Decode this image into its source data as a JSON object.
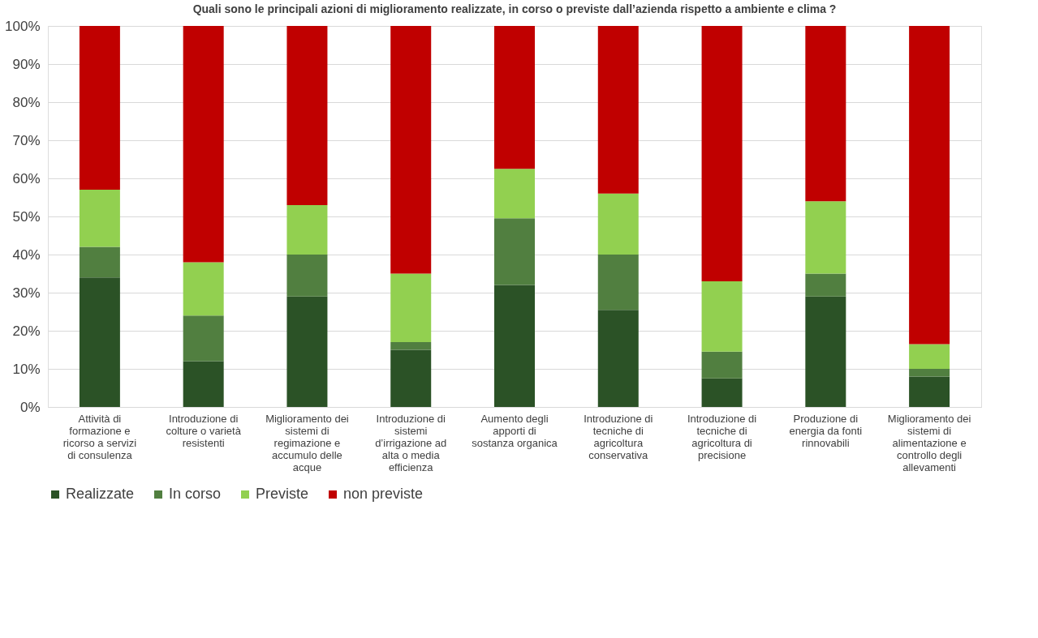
{
  "chart_data": {
    "type": "bar",
    "stacked": true,
    "title": "Quali sono le principali azioni di miglioramento realizzate, in corso o previste dall’azienda rispetto a  ambiente e clima ?",
    "categories": [
      "Attività di formazione e ricorso a servizi di consulenza",
      "Introduzione di colture o varietà resistenti",
      "Miglioramento dei sistemi di regimazione  e accumulo delle acque",
      "Introduzione di sistemi d’irrigazione ad alta o media efficienza",
      "Aumento degli apporti di sostanza organica",
      "Introduzione di tecniche di agricoltura conservativa",
      "Introduzione di tecniche di agricoltura di precisione",
      "Produzione di energia da fonti rinnovabili",
      "Miglioramento dei sistemi di alimentazione e controllo degli allevamenti"
    ],
    "series": [
      {
        "name": "Realizzate",
        "color": "#2b5226",
        "values": [
          34,
          12,
          29,
          15,
          32,
          25.5,
          7.5,
          29,
          8
        ]
      },
      {
        "name": "In corso",
        "color": "#517f40",
        "values": [
          8,
          12,
          11,
          2,
          17.5,
          14.5,
          7,
          6,
          2
        ]
      },
      {
        "name": "Previste",
        "color": "#92d050",
        "values": [
          15,
          14,
          13,
          18,
          13,
          16,
          18.5,
          19,
          6.5
        ]
      },
      {
        "name": "non previste",
        "color": "#c00000",
        "values": [
          43,
          62,
          47,
          65,
          37.5,
          44,
          67,
          46,
          83.5
        ]
      }
    ],
    "ylim": [
      0,
      100
    ],
    "yticks": [
      {
        "value": 0,
        "label": "0%"
      },
      {
        "value": 10,
        "label": "10%"
      },
      {
        "value": 20,
        "label": "20%"
      },
      {
        "value": 30,
        "label": "30%"
      },
      {
        "value": 40,
        "label": "40%"
      },
      {
        "value": 50,
        "label": "50%"
      },
      {
        "value": 60,
        "label": "60%"
      },
      {
        "value": 70,
        "label": "70%"
      },
      {
        "value": 80,
        "label": "80%"
      },
      {
        "value": 90,
        "label": "90%"
      },
      {
        "value": 100,
        "label": "100%"
      }
    ],
    "grid": "y",
    "legend": "bottom"
  }
}
